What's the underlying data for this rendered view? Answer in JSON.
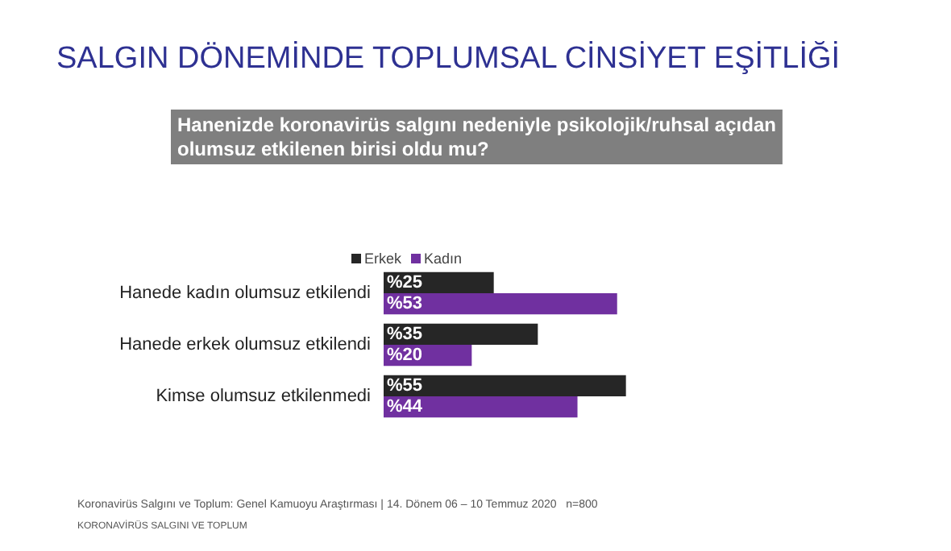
{
  "chart_data": {
    "type": "bar",
    "orientation": "horizontal",
    "title": "SALGIN DÖNEMİNDE TOPLUMSAL CİNSİYET EŞİTLİĞİ",
    "subtitle": "Hanenizde koronavirüs salgını nedeniyle psikolojik/ruhsal açıdan\nolumsuz etkilenen birisi oldu mu?",
    "categories": [
      "Hanede kadın olumsuz etkilendi",
      "Hanede erkek olumsuz etkilendi",
      "Kimse olumsuz etkilenmedi"
    ],
    "series": [
      {
        "name": "Erkek",
        "color": "#262626",
        "values": [
          25,
          35,
          55
        ],
        "value_labels": [
          "%25",
          "%35",
          "%55"
        ]
      },
      {
        "name": "Kadın",
        "color": "#7030a0",
        "values": [
          53,
          20,
          44
        ],
        "value_labels": [
          "%53",
          "%20",
          "%44"
        ]
      }
    ],
    "legend": "top",
    "grid": false,
    "annotations": [
      "Koronavirüs Salgını ve Toplum: Genel Kamuoyu Araştırması | 14. Dönem 06 – 10 Temmuz 2020   n=800",
      "KORONAVİRÜS SALGINI VE TOPLUM"
    ]
  }
}
